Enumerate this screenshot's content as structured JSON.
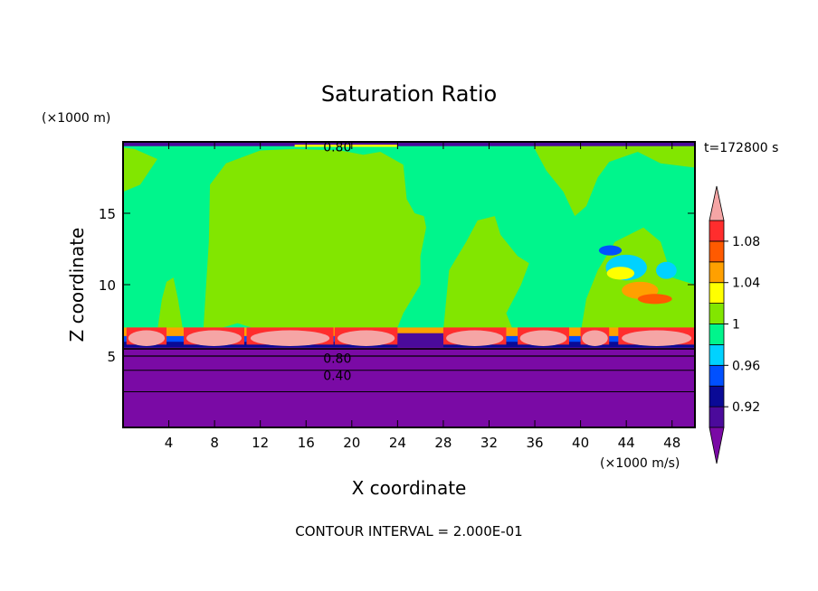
{
  "chart_data": {
    "type": "heatmap",
    "title": "Saturation Ratio",
    "xlabel": "X coordinate",
    "ylabel": "Z coordinate",
    "x_unit": "(×1000 m/s)",
    "y_unit": "(×1000 m)",
    "time_label": "t=172800 s",
    "footer": "CONTOUR INTERVAL = 2.000E-01",
    "xlim": [
      0,
      50
    ],
    "ylim": [
      0,
      20
    ],
    "x_ticks": [
      4,
      8,
      12,
      16,
      20,
      24,
      28,
      32,
      36,
      40,
      44,
      48
    ],
    "y_ticks": [
      5,
      10,
      15
    ],
    "contour_labels": [
      "0.80",
      "0.80",
      "0.40"
    ],
    "colorbar": {
      "levels": [
        0.9,
        0.92,
        0.94,
        0.96,
        0.98,
        1.0,
        1.02,
        1.04,
        1.06,
        1.08,
        1.1
      ],
      "tick_labels": [
        "0.92",
        "0.96",
        "1",
        "1.04",
        "1.08"
      ],
      "colors": [
        "#4b0a9b",
        "#0a0a96",
        "#0050ff",
        "#00d2ff",
        "#00f58c",
        "#82e600",
        "#ffff00",
        "#ffa000",
        "#ff5a00",
        "#ff2d2d"
      ],
      "under_color": "#7a0aa5",
      "over_color": "#f5a5a5"
    }
  }
}
